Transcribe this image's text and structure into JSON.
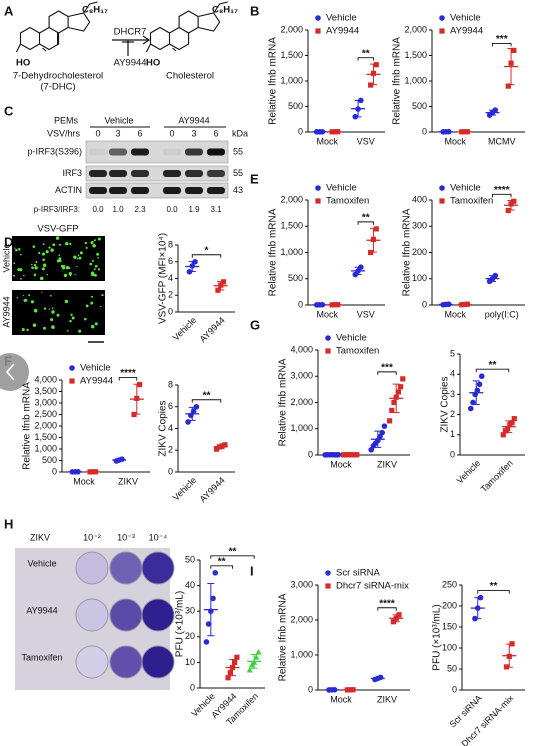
{
  "panels": {
    "letters": [
      "A",
      "B",
      "C",
      "D",
      "E",
      "F",
      "G",
      "H",
      "I"
    ]
  },
  "pathway": {
    "substrate": "7-Dehydrocholesterol",
    "substrate_abbr": "(7-DHC)",
    "enzyme": "DHCR7",
    "inhibitor": "AY9944",
    "product": "Cholesterol",
    "hydroxyl": "HO",
    "side_chain": "C₈H₁₇"
  },
  "blot": {
    "cell": "PEMs",
    "groups": [
      "Vehicle",
      "AY9944"
    ],
    "time_label": "VSV/hrs",
    "times": [
      "0",
      "3",
      "6",
      "0",
      "3",
      "6"
    ],
    "unit": "kDa",
    "rows": [
      {
        "name": "p-IRF3(S396)",
        "kda": "55"
      },
      {
        "name": "IRF3",
        "kda": "55"
      },
      {
        "name": "ACTIN",
        "kda": "43"
      }
    ],
    "ratio_label": "p-IRF3/IRF3:",
    "ratios": [
      "0.0",
      "1.0",
      "2.3",
      "0.0",
      "1.9",
      "3.1"
    ]
  },
  "imaging": {
    "title": "VSV-GFP",
    "rows": [
      "Vehicle",
      "AY9944"
    ]
  },
  "plaque": {
    "virus": "ZIKV",
    "dilutions": [
      "10⁻²",
      "10⁻³",
      "10⁻⁴"
    ],
    "rows": [
      "Vehicle",
      "AY9944",
      "Tamoxifen"
    ]
  },
  "chart_data": [
    {
      "type": "dot-grouped",
      "ylabel": "Relative Ifnb mRNA",
      "categories": [
        "Mock",
        "VSV"
      ],
      "series": [
        {
          "name": "Vehicle",
          "color": "#2a2ad4",
          "marker": "circle",
          "values": [
            [
              3,
              4,
              5
            ],
            [
              300,
              450,
              620
            ]
          ]
        },
        {
          "name": "AY9944",
          "color": "#d42a2a",
          "marker": "square",
          "values": [
            [
              3,
              4,
              6
            ],
            [
              920,
              1150,
              1320
            ]
          ]
        }
      ],
      "ylim": [
        0,
        2000
      ],
      "yticks": [
        0,
        500,
        {
          "value": 1000,
          "label": "1,000"
        },
        {
          "value": 1500,
          "label": "1,500"
        },
        {
          "value": 2000,
          "label": "2,000"
        }
      ],
      "significance": [
        "**"
      ]
    },
    {
      "type": "dot-grouped",
      "ylabel": "Relative Ifnb mRNA",
      "categories": [
        "Mock",
        "MCMV"
      ],
      "series": [
        {
          "name": "Vehicle",
          "color": "#2a2ad4",
          "marker": "circle",
          "values": [
            [
              3,
              5,
              6
            ],
            [
              330,
              380,
              430
            ]
          ]
        },
        {
          "name": "AY9944",
          "color": "#d42a2a",
          "marker": "square",
          "values": [
            [
              3,
              4,
              5
            ],
            [
              900,
              1350,
              1600
            ]
          ]
        }
      ],
      "ylim": [
        0,
        2000
      ],
      "yticks": [
        0,
        500,
        {
          "value": 1000,
          "label": "1,000"
        },
        {
          "value": 1500,
          "label": "1,500"
        },
        {
          "value": 2000,
          "label": "2,000"
        }
      ],
      "significance": [
        "***"
      ]
    },
    {
      "type": "dot-grouped",
      "ylabel": "Relative Ifnb mRNA",
      "categories": [
        "Mock",
        "VSV"
      ],
      "series": [
        {
          "name": "Vehicle",
          "color": "#2a2ad4",
          "marker": "circle",
          "values": [
            [
              3,
              4,
              5
            ],
            [
              580,
              650,
              720
            ]
          ]
        },
        {
          "name": "Tamoxifen",
          "color": "#d42a2a",
          "marker": "square",
          "values": [
            [
              3,
              5,
              6
            ],
            [
              1000,
              1250,
              1450
            ]
          ]
        }
      ],
      "ylim": [
        0,
        2000
      ],
      "yticks": [
        0,
        500,
        {
          "value": 1000,
          "label": "1,000"
        },
        {
          "value": 1500,
          "label": "1,500"
        },
        {
          "value": 2000,
          "label": "2,000"
        }
      ],
      "significance": [
        "**"
      ]
    },
    {
      "type": "dot-grouped",
      "ylabel": "Relative Ifnb mRNA",
      "categories": [
        "Mock",
        "poly(I:C)"
      ],
      "series": [
        {
          "name": "Vehicle",
          "color": "#2a2ad4",
          "marker": "circle",
          "values": [
            [
              1,
              2,
              3
            ],
            [
              90,
              100,
              112
            ]
          ]
        },
        {
          "name": "Tamoxifen",
          "color": "#d42a2a",
          "marker": "square",
          "values": [
            [
              1,
              2,
              3
            ],
            [
              360,
              385,
              395
            ]
          ]
        }
      ],
      "ylim": [
        0,
        400
      ],
      "yticks": [
        0,
        100,
        200,
        300,
        400
      ],
      "significance": [
        "****"
      ]
    },
    {
      "type": "dot",
      "ylabel": "VSV-GFP (MFI×10⁴)",
      "categories": [
        "Vehicle",
        "AY9944"
      ],
      "colors": [
        "#2a2ad4",
        "#d42a2a"
      ],
      "markers": [
        "circle",
        "square"
      ],
      "values": [
        [
          4.8,
          5.5,
          6.0
        ],
        [
          2.6,
          3.2,
          3.6
        ]
      ],
      "ylim": [
        0,
        8
      ],
      "yticks": [
        0,
        2,
        4,
        6,
        8
      ],
      "significance": [
        "*"
      ]
    },
    {
      "type": "dot-grouped",
      "ylabel": "Relative Ifnb mRNA",
      "categories": [
        "Mock",
        "ZIKV"
      ],
      "series": [
        {
          "name": "Vehicle",
          "color": "#2a2ad4",
          "marker": "circle",
          "values": [
            [
              5,
              8,
              10
            ],
            [
              480,
              520,
              560
            ]
          ]
        },
        {
          "name": "AY9944",
          "color": "#d42a2a",
          "marker": "square",
          "values": [
            [
              5,
              8,
              10
            ],
            [
              2500,
              3200,
              3800
            ]
          ]
        }
      ],
      "ylim": [
        0,
        4000
      ],
      "yticks": [
        0,
        500,
        {
          "value": 1000,
          "label": "1,000"
        },
        {
          "value": 1500,
          "label": "1,500"
        },
        {
          "value": 2000,
          "label": "2,000"
        },
        {
          "value": 2500,
          "label": "2,500"
        },
        {
          "value": 3000,
          "label": "3,000"
        },
        {
          "value": 3500,
          "label": "3,500"
        },
        {
          "value": 4000,
          "label": "4,000"
        }
      ],
      "significance": [
        "****"
      ]
    },
    {
      "type": "dot",
      "ylabel": "ZIKV Copies",
      "categories": [
        "Vehicle",
        "AY9944"
      ],
      "colors": [
        "#2a2ad4",
        "#d42a2a"
      ],
      "markers": [
        "circle",
        "square"
      ],
      "values": [
        [
          4.6,
          5.2,
          5.6,
          6.0
        ],
        [
          2.1,
          2.3,
          2.4,
          2.5
        ]
      ],
      "ylim": [
        0,
        8
      ],
      "yticks": [
        0,
        2,
        4,
        6,
        8
      ],
      "significance": [
        "**"
      ]
    },
    {
      "type": "dot-grouped",
      "ylabel": "Relative Ifnb mRNA",
      "categories": [
        "Mock",
        "ZIKV"
      ],
      "series": [
        {
          "name": "Vehicle",
          "color": "#2a2ad4",
          "marker": "circle",
          "values": [
            [
              5,
              8,
              10,
              12,
              8,
              6,
              10
            ],
            [
              200,
              350,
              450,
              550,
              700,
              850,
              1100
            ]
          ]
        },
        {
          "name": "Tamoxifen",
          "color": "#d42a2a",
          "marker": "square",
          "values": [
            [
              5,
              8,
              10,
              12,
              8,
              6,
              10
            ],
            [
              1300,
              1700,
              2000,
              2200,
              2400,
              2600,
              2900
            ]
          ]
        }
      ],
      "ylim": [
        0,
        4000
      ],
      "yticks": [
        0,
        {
          "value": 1000,
          "label": "1,000"
        },
        {
          "value": 2000,
          "label": "2,000"
        },
        {
          "value": 3000,
          "label": "3,000"
        },
        {
          "value": 4000,
          "label": "4,000"
        }
      ],
      "significance": [
        "***"
      ]
    },
    {
      "type": "dot",
      "ylabel": "ZIKV Copies",
      "categories": [
        "Vehicle",
        "Tamoxifen"
      ],
      "colors": [
        "#2a2ad4",
        "#d42a2a"
      ],
      "markers": [
        "circle",
        "square"
      ],
      "values": [
        [
          2.3,
          2.6,
          3.0,
          3.2,
          3.5,
          3.9
        ],
        [
          1.0,
          1.2,
          1.3,
          1.5,
          1.6,
          1.8
        ]
      ],
      "ylim": [
        0,
        5
      ],
      "yticks": [
        0,
        1,
        2,
        3,
        4,
        5
      ],
      "significance": [
        "**"
      ]
    },
    {
      "type": "dot",
      "ylabel": "PFU (×10³/mL)",
      "categories": [
        "Vehicle",
        "AY9944",
        "Tamoxifen"
      ],
      "colors": [
        "#2a2ad4",
        "#d42a2a",
        "#3fcf3f"
      ],
      "markers": [
        "circle",
        "square",
        "triangle"
      ],
      "values": [
        [
          18,
          25,
          30,
          35,
          45
        ],
        [
          4,
          6,
          8,
          10,
          12
        ],
        [
          7,
          9,
          10,
          12,
          14
        ]
      ],
      "ylim": [
        0,
        50
      ],
      "yticks": [
        0,
        10,
        20,
        30,
        40,
        50
      ],
      "significance": [
        "**",
        "**"
      ]
    },
    {
      "type": "dot-grouped",
      "ylabel": "Relative Ifnb mRNA",
      "categories": [
        "Mock",
        "ZIKV"
      ],
      "series": [
        {
          "name": "Scr siRNA",
          "color": "#2a2ad4",
          "marker": "circle",
          "values": [
            [
              3,
              5,
              7
            ],
            [
              300,
              330,
              360
            ]
          ]
        },
        {
          "name": "Dhcr7 siRNA-mix",
          "color": "#d42a2a",
          "marker": "square",
          "values": [
            [
              3,
              5,
              7
            ],
            [
              1950,
              2050,
              2150
            ]
          ]
        }
      ],
      "ylim": [
        0,
        3000
      ],
      "yticks": [
        0,
        {
          "value": 1000,
          "label": "1,000"
        },
        {
          "value": 2000,
          "label": "2,000"
        },
        {
          "value": 3000,
          "label": "3,000"
        }
      ],
      "significance": [
        "****"
      ]
    },
    {
      "type": "dot",
      "ylabel": "PFU (×10³/mL)",
      "categories": [
        "Scr siRNA",
        "Dhcr7 siRNA-mix"
      ],
      "colors": [
        "#2a2ad4",
        "#d42a2a"
      ],
      "markers": [
        "circle",
        "square"
      ],
      "values": [
        [
          170,
          195,
          220
        ],
        [
          55,
          80,
          110
        ]
      ],
      "ylim": [
        0,
        250
      ],
      "yticks": [
        0,
        50,
        100,
        150,
        200,
        250
      ],
      "significance": [
        "**"
      ]
    }
  ]
}
